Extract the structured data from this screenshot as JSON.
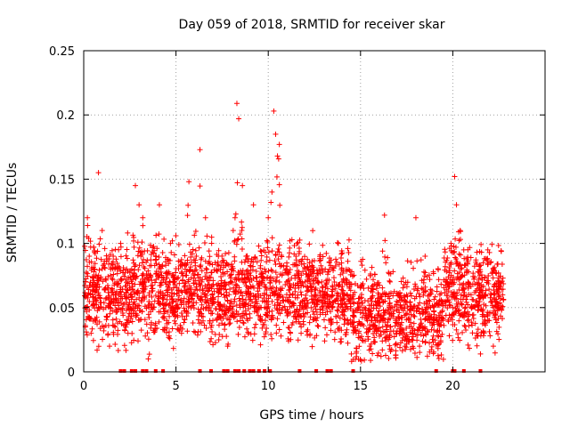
{
  "chart_data": {
    "type": "scatter",
    "title": "Day 059 of 2018, SRMTID for receiver skar",
    "xlabel": "GPS time / hours",
    "ylabel": "SRMTID / TECUs",
    "xlim": [
      0,
      25
    ],
    "ylim": [
      0,
      0.25
    ],
    "xticks": [
      0,
      5,
      10,
      15,
      20
    ],
    "xtick_labels": [
      "0",
      "5",
      "10",
      "15",
      "20"
    ],
    "yticks": [
      0,
      0.05,
      0.1,
      0.15,
      0.2,
      0.25
    ],
    "ytick_labels": [
      "0",
      "0.05",
      "0.1",
      "0.15",
      "0.2",
      "0.25"
    ],
    "grid": true,
    "marker": "+",
    "color": "#ff0000",
    "point_count_estimate": 3000,
    "series": [
      {
        "name": "SRMTID",
        "x": [
          0.1,
          0.2,
          0.3,
          0.4,
          0.5,
          0.6,
          0.8,
          1.0,
          1.2,
          1.4,
          1.6,
          1.8,
          2.0,
          2.2,
          2.4,
          2.6,
          2.8,
          3.0,
          3.1,
          3.2,
          3.3,
          3.5,
          3.7,
          3.9,
          4.1,
          4.3,
          4.5,
          4.7,
          4.9,
          5.1,
          5.3,
          5.5,
          5.7,
          5.9,
          6.1,
          6.3,
          6.4,
          6.6,
          6.8,
          7.0,
          7.3,
          7.6,
          7.8,
          8.0,
          8.1,
          8.2,
          8.3,
          8.4,
          8.6,
          8.8,
          9.0,
          9.2,
          9.4,
          9.6,
          9.8,
          10.0,
          10.2,
          10.3,
          10.4,
          10.5,
          10.6,
          10.8,
          11.0,
          11.2,
          11.5,
          11.8,
          12.0,
          12.3,
          12.6,
          12.9,
          13.2,
          13.5,
          13.8,
          14.0,
          14.3,
          14.6,
          14.9,
          15.2,
          15.5,
          15.8,
          16.0,
          16.3,
          16.6,
          16.9,
          17.2,
          17.5,
          17.8,
          18.0,
          18.2,
          18.5,
          18.8,
          19.0,
          19.3,
          19.6,
          19.9,
          20.0,
          20.1,
          20.2,
          20.4,
          20.6,
          20.8,
          21.0,
          21.3,
          21.6,
          21.9,
          22.2,
          22.5,
          22.7
        ],
        "y": [
          0.07,
          0.12,
          0.09,
          0.03,
          0.06,
          0.08,
          0.155,
          0.11,
          0.05,
          0.02,
          0.09,
          0.07,
          0.1,
          0.06,
          0.04,
          0.08,
          0.145,
          0.13,
          0.09,
          0.12,
          0.07,
          0.01,
          0.05,
          0.09,
          0.13,
          0.06,
          0.04,
          0.1,
          0.07,
          0.05,
          0.03,
          0.08,
          0.148,
          0.06,
          0.09,
          0.173,
          0.07,
          0.12,
          0.05,
          0.04,
          0.09,
          0.06,
          0.02,
          0.08,
          0.11,
          0.12,
          0.209,
          0.197,
          0.145,
          0.09,
          0.07,
          0.13,
          0.05,
          0.04,
          0.08,
          0.12,
          0.14,
          0.203,
          0.185,
          0.168,
          0.177,
          0.05,
          0.07,
          0.03,
          0.09,
          0.06,
          0.05,
          0.08,
          0.04,
          0.07,
          0.06,
          0.05,
          0.1,
          0.07,
          0.04,
          0.06,
          0.03,
          0.05,
          0.02,
          0.04,
          0.06,
          0.122,
          0.07,
          0.04,
          0.05,
          0.06,
          0.03,
          0.12,
          0.02,
          0.09,
          0.05,
          0.04,
          0.06,
          0.07,
          0.1,
          0.05,
          0.152,
          0.13,
          0.11,
          0.06,
          0.04,
          0.05,
          0.03,
          0.06,
          0.04,
          0.05,
          0.07,
          0.06
        ],
        "zero_markers_x": [
          2.0,
          2.2,
          2.6,
          2.8,
          3.2,
          3.4,
          3.9,
          4.3,
          6.3,
          6.9,
          7.6,
          7.8,
          8.2,
          8.4,
          8.7,
          9.0,
          9.2,
          9.5,
          9.8,
          10.1,
          11.7,
          12.6,
          13.2,
          13.4,
          14.6,
          19.1,
          20.0,
          20.1,
          20.6,
          21.5
        ]
      }
    ]
  }
}
